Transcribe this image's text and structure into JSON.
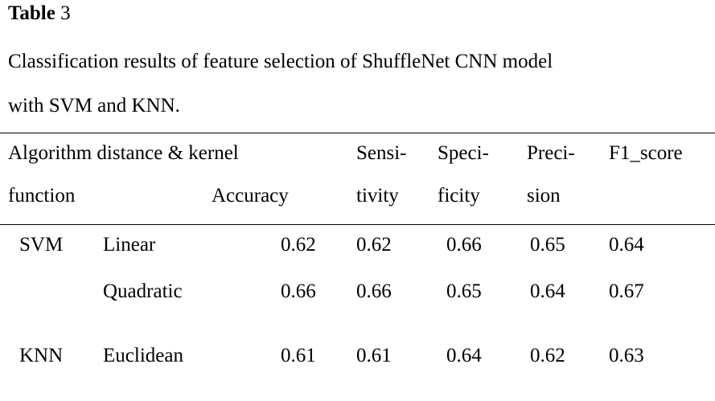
{
  "table": {
    "label_bold": "Table",
    "label_num": " 3",
    "caption_line1": "Classification results of feature selection of ShuffleNet CNN model",
    "caption_line2": "with SVM and KNN.",
    "headers": {
      "algorithm_line1": "Algorithm distance & kernel",
      "algorithm_line2": "function",
      "accuracy": "Accuracy",
      "sensitivity_line1": "Sensi-",
      "sensitivity_line2": "tivity",
      "specificity_line1": "Speci-",
      "specificity_line2": "ficity",
      "precision_line1": "Preci-",
      "precision_line2": "sion",
      "f1": "F1_score"
    },
    "rows": [
      {
        "algorithm": "SVM",
        "kernel": "Linear",
        "accuracy": "0.62",
        "sensitivity": "0.62",
        "specificity": "0.66",
        "precision": "0.65",
        "f1": "0.64"
      },
      {
        "algorithm": "",
        "kernel": "Quadratic",
        "accuracy": "0.66",
        "sensitivity": "0.66",
        "specificity": "0.65",
        "precision": "0.64",
        "f1": "0.67"
      },
      {
        "algorithm": "KNN",
        "kernel": "Euclidean",
        "accuracy": "0.61",
        "sensitivity": "0.61",
        "specificity": "0.64",
        "precision": "0.62",
        "f1": "0.63"
      }
    ]
  }
}
